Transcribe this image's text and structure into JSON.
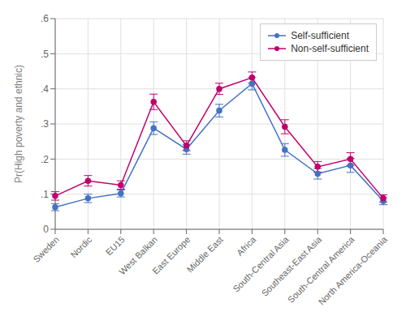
{
  "chart_data": {
    "type": "line",
    "categories": [
      "Sweden",
      "Nordic",
      "EU15",
      "West Balkan",
      "East Europe",
      "Middle East",
      "Africa",
      "South-Central Asia",
      "Southeast-East Asia",
      "South-Central America",
      "North America-Oceania"
    ],
    "series": [
      {
        "name": "Self-sufficient",
        "color": "#4472C4",
        "marker": "circle",
        "values": [
          0.063,
          0.088,
          0.102,
          0.288,
          0.228,
          0.338,
          0.415,
          0.226,
          0.158,
          0.182,
          0.08
        ],
        "errors": [
          0.01,
          0.012,
          0.01,
          0.018,
          0.014,
          0.018,
          0.018,
          0.018,
          0.015,
          0.02,
          0.01
        ]
      },
      {
        "name": "Non-self-sufficient",
        "color": "#C0006A",
        "marker": "circle",
        "values": [
          0.095,
          0.138,
          0.126,
          0.363,
          0.238,
          0.4,
          0.432,
          0.292,
          0.178,
          0.2,
          0.088
        ],
        "errors": [
          0.012,
          0.015,
          0.012,
          0.022,
          0.014,
          0.016,
          0.016,
          0.02,
          0.015,
          0.018,
          0.01
        ]
      }
    ],
    "ylabel": "Pr(High poverty and ethnic)",
    "ylim": [
      0,
      0.6
    ],
    "yticks": [
      0,
      {
        "value": 0.1,
        "label": ".1"
      },
      {
        "value": 0.2,
        "label": ".2"
      },
      {
        "value": 0.3,
        "label": ".3"
      },
      {
        "value": 0.4,
        "label": ".4"
      },
      {
        "value": 0.5,
        "label": ".5"
      },
      {
        "value": 0.6,
        "label": ".6"
      }
    ],
    "grid": true,
    "legend": "upper right"
  }
}
